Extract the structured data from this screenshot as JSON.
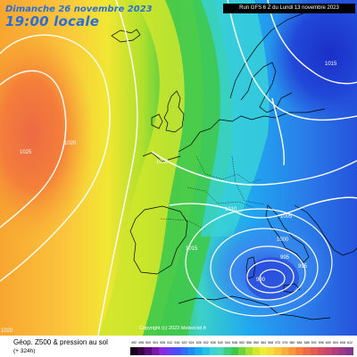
{
  "header": {
    "date": "Dimanche 26 novembre 2023",
    "time": "19:00 locale",
    "run": "Run GFS 6 Z du Lundi 13 novembre 2023"
  },
  "footer": {
    "title": "Géop. Z500 & pression au sol",
    "lead": "(+ 324h)",
    "copyright": "Copyright (c) 2023 Meteociel.fr"
  },
  "isobars": [
    {
      "label": "1020",
      "role": "west-anticyclone-label"
    },
    {
      "label": "1025",
      "role": "atlantic-ridge-label"
    },
    {
      "label": "1020",
      "role": "iberia-bay-label"
    },
    {
      "label": "1015",
      "role": "north-scandinavia-label"
    },
    {
      "label": "1010",
      "role": "alps-label"
    },
    {
      "label": "1005",
      "role": "italy-label"
    },
    {
      "label": "1015",
      "role": "iberia-east-label"
    },
    {
      "label": "1000",
      "role": "ligurian-label"
    },
    {
      "label": "995",
      "role": "tyrrhenian-label"
    },
    {
      "label": "995",
      "role": "sardinia-label"
    },
    {
      "label": "990",
      "role": "low-inner-label"
    },
    {
      "label": "1020",
      "role": "south-west-corner-label"
    }
  ],
  "colorbar": {
    "ticks": [
      "492",
      "496",
      "500",
      "504",
      "508",
      "512",
      "516",
      "520",
      "524",
      "528",
      "532",
      "536",
      "540",
      "544",
      "548",
      "552",
      "556",
      "560",
      "564",
      "568",
      "572",
      "576",
      "580",
      "584",
      "588",
      "592",
      "596",
      "600",
      "604",
      "608",
      "612"
    ],
    "colors": [
      "#1a001f",
      "#3a0046",
      "#5a0a7a",
      "#7a1aa8",
      "#8a2be2",
      "#6a3df0",
      "#4a4df5",
      "#2f6df7",
      "#1e8cf5",
      "#18aaf0",
      "#22c2e8",
      "#3ad2d8",
      "#44d8b8",
      "#3ecf7e",
      "#3cc84a",
      "#6fd43a",
      "#a6e02c",
      "#d2e82a",
      "#f0ee2e",
      "#f8dc38",
      "#fbc63c",
      "#fcae3a",
      "#fa9638",
      "#f47e3a",
      "#ec6a44",
      "#e25a52",
      "#d44e60",
      "#c4466e",
      "#b03e7c",
      "#9a3a86",
      "#86368c"
    ]
  },
  "colors": {
    "title_blue": "#2a6fd6",
    "deep_blue": "#1a3fd6",
    "orange": "#f7a02a",
    "yellow": "#f1e62f",
    "green": "#3dc84a"
  }
}
